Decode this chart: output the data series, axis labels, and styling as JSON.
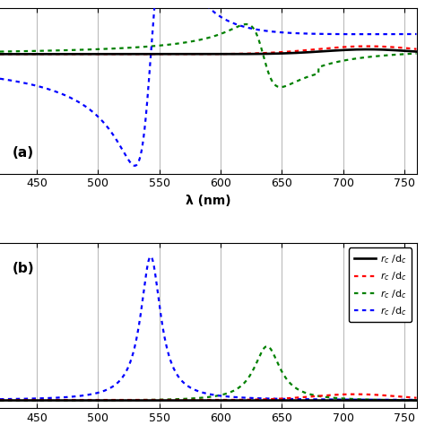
{
  "xlim": [
    420,
    760
  ],
  "xlabel": "λ (nm)",
  "panel_a_ylim": [
    -1.5,
    0.6
  ],
  "panel_b_ylim": [
    -0.05,
    1.1
  ],
  "line_colors": [
    "black",
    "red",
    "green",
    "blue"
  ],
  "panel_labels": [
    "(a)",
    "(b)"
  ],
  "background_color": "#ffffff",
  "grid_color": "#bbbbbb",
  "lw": 1.6
}
